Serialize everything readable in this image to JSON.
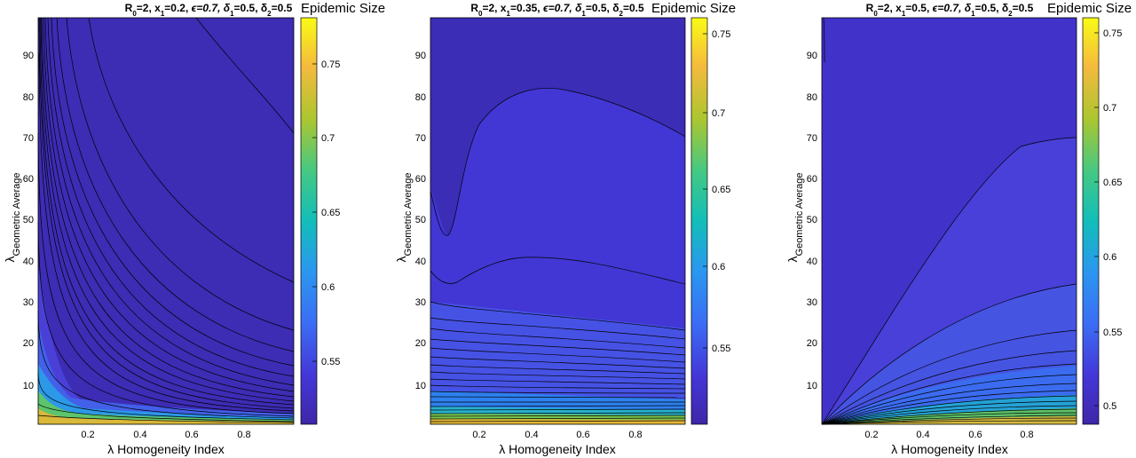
{
  "colors": {
    "low": "#3e26a8",
    "mid": "#12beb9",
    "high": "#f9fb15"
  },
  "chart_data": [
    {
      "type": "heatmap",
      "title": "R₀=2, x₁=0.2, ϵ=0.7, δ₁=0.5, δ₂=0.5",
      "title_parts": {
        "R": "R",
        "R_sub": "0",
        "R_val": "=2, x",
        "x_sub": "1",
        "x_val": "=0.2, ",
        "eps": "ϵ=0.7, δ",
        "d1_sub": "1",
        "d1_val": "=0.5, δ",
        "d2_sub": "2",
        "d2_val": "=0.5"
      },
      "xlabel": "λ Homogeneity Index",
      "ylabel_main": "λ",
      "ylabel_sub": "Geometric Average",
      "xlim": [
        0.01,
        0.99
      ],
      "ylim": [
        1,
        99
      ],
      "xticks": [
        "0.2",
        "0.4",
        "0.6",
        "0.8"
      ],
      "yticks": [
        "10",
        "20",
        "30",
        "40",
        "50",
        "60",
        "70",
        "80",
        "90"
      ],
      "colorbar": {
        "label": "Epidemic Size",
        "ticks": [
          "0.55",
          "0.6",
          "0.65",
          "0.7",
          "0.75"
        ],
        "range": [
          0.505,
          0.775
        ]
      }
    },
    {
      "type": "heatmap",
      "title": "R₀=2, x₁=0.35, ϵ=0.7, δ₁=0.5, δ₂=0.5",
      "title_parts": {
        "R": "R",
        "R_sub": "0",
        "R_val": "=2, x",
        "x_sub": "1",
        "x_val": "=0.35, ",
        "eps": "ϵ=0.7, δ",
        "d1_sub": "1",
        "d1_val": "=0.5, δ",
        "d2_sub": "2",
        "d2_val": "=0.5"
      },
      "xlabel": "λ Homogeneity Index",
      "ylabel_main": "λ",
      "ylabel_sub": "Geometric Average",
      "xlim": [
        0.01,
        0.99
      ],
      "ylim": [
        1,
        99
      ],
      "xticks": [
        "0.2",
        "0.4",
        "0.6",
        "0.8"
      ],
      "yticks": [
        "10",
        "20",
        "30",
        "40",
        "50",
        "60",
        "70",
        "80",
        "90"
      ],
      "colorbar": {
        "label": "Epidemic Size",
        "ticks": [
          "0.55",
          "0.6",
          "0.65",
          "0.7",
          "0.75"
        ],
        "range": [
          0.5,
          0.765
        ]
      }
    },
    {
      "type": "heatmap",
      "title": "R₀=2, x₁=0.5, ϵ=0.7, δ₁=0.5, δ₂=0.5",
      "title_parts": {
        "R": "R",
        "R_sub": "0",
        "R_val": "=2, x",
        "x_sub": "1",
        "x_val": "=0.5, ",
        "eps": "ϵ=0.7, δ",
        "d1_sub": "1",
        "d1_val": "=0.5, δ",
        "d2_sub": "2",
        "d2_val": "=0.5"
      },
      "xlabel": "λ Homogeneity Index",
      "ylabel_main": "λ",
      "ylabel_sub": "Geometric Average",
      "xlim": [
        0.01,
        0.99
      ],
      "ylim": [
        1,
        99
      ],
      "xticks": [
        "0.2",
        "0.4",
        "0.6",
        "0.8"
      ],
      "yticks": [
        "10",
        "20",
        "30",
        "40",
        "50",
        "60",
        "70",
        "80",
        "90"
      ],
      "colorbar": {
        "label": "Epidemic Size",
        "ticks": [
          "0.5",
          "0.55",
          "0.6",
          "0.65",
          "0.7",
          "0.75"
        ],
        "range": [
          0.49,
          0.765
        ]
      }
    }
  ]
}
